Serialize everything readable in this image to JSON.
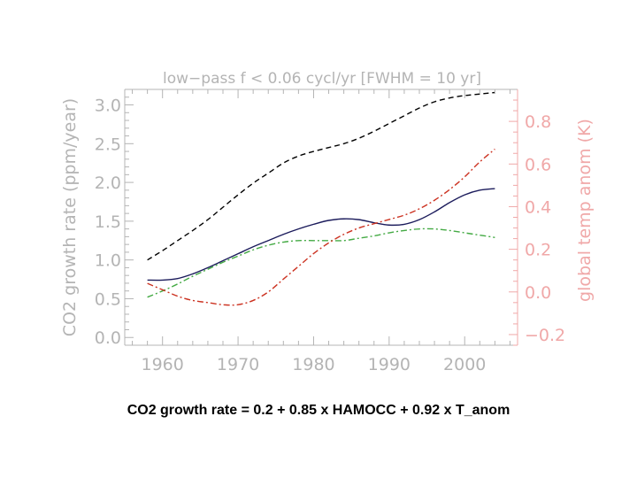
{
  "caption": "CO2 growth rate = 0.2 + 0.85 x HAMOCC + 0.92 x T_anom",
  "chart_data": {
    "type": "line",
    "title": "low−pass f < 0.06 cycl/yr  [FWHM = 10 yr]",
    "xlabel": "",
    "ylabel": "CO2 growth rate (ppm/year)",
    "y2label": "global temp anom (K)",
    "xlim": [
      1955,
      2007
    ],
    "ylim": [
      -0.1,
      3.2
    ],
    "y2lim": [
      -0.25,
      0.95
    ],
    "xticks": [
      1960,
      1970,
      1980,
      1990,
      2000
    ],
    "yticks": [
      0.0,
      0.5,
      1.0,
      1.5,
      2.0,
      2.5,
      3.0
    ],
    "yticklabels": [
      "0.0",
      "0.5",
      "1.0",
      "1.5",
      "2.0",
      "2.5",
      "3.0"
    ],
    "y2ticks": [
      -0.2,
      0.0,
      0.2,
      0.4,
      0.6,
      0.8
    ],
    "y2ticklabels": [
      "−0.2",
      "0.0",
      "0.2",
      "0.4",
      "0.6",
      "0.8"
    ],
    "grid": false,
    "colors": {
      "axis_left": "#b4b4b4",
      "axis_right": "#f0a8a8"
    },
    "series": [
      {
        "axis": "left",
        "color": "#000000",
        "dash": "dashed",
        "x": [
          1958,
          1960,
          1962,
          1964,
          1966,
          1968,
          1970,
          1972,
          1974,
          1976,
          1978,
          1980,
          1982,
          1984,
          1986,
          1988,
          1990,
          1992,
          1994,
          1996,
          1998,
          2000,
          2002,
          2004
        ],
        "y": [
          1.0,
          1.12,
          1.25,
          1.38,
          1.52,
          1.68,
          1.84,
          1.99,
          2.12,
          2.25,
          2.34,
          2.4,
          2.45,
          2.5,
          2.57,
          2.66,
          2.76,
          2.86,
          2.96,
          3.04,
          3.09,
          3.12,
          3.14,
          3.16
        ]
      },
      {
        "axis": "left",
        "color": "#1c1c5c",
        "dash": "solid",
        "x": [
          1958,
          1960,
          1962,
          1964,
          1966,
          1968,
          1970,
          1972,
          1974,
          1976,
          1978,
          1980,
          1982,
          1984,
          1986,
          1988,
          1990,
          1992,
          1994,
          1996,
          1998,
          2000,
          2002,
          2004
        ],
        "y": [
          0.74,
          0.74,
          0.76,
          0.82,
          0.9,
          0.99,
          1.08,
          1.17,
          1.25,
          1.33,
          1.4,
          1.46,
          1.51,
          1.53,
          1.52,
          1.48,
          1.45,
          1.46,
          1.52,
          1.62,
          1.74,
          1.84,
          1.9,
          1.92
        ]
      },
      {
        "axis": "left",
        "color": "#44aa44",
        "dash": "dash-dot",
        "x": [
          1958,
          1960,
          1962,
          1964,
          1966,
          1968,
          1970,
          1972,
          1974,
          1976,
          1978,
          1980,
          1982,
          1984,
          1986,
          1988,
          1990,
          1992,
          1994,
          1996,
          1998,
          2000,
          2002,
          2004
        ],
        "y": [
          0.52,
          0.6,
          0.69,
          0.79,
          0.88,
          0.97,
          1.05,
          1.13,
          1.19,
          1.23,
          1.25,
          1.25,
          1.25,
          1.25,
          1.28,
          1.31,
          1.35,
          1.38,
          1.4,
          1.4,
          1.38,
          1.35,
          1.32,
          1.29
        ]
      },
      {
        "axis": "right",
        "color": "#cc3322",
        "dash": "dash-dot",
        "x": [
          1958,
          1960,
          1962,
          1964,
          1966,
          1968,
          1970,
          1972,
          1974,
          1976,
          1978,
          1980,
          1982,
          1984,
          1986,
          1988,
          1990,
          1992,
          1994,
          1996,
          1998,
          2000,
          2002,
          2004
        ],
        "y": [
          0.04,
          0.01,
          -0.02,
          -0.04,
          -0.05,
          -0.06,
          -0.06,
          -0.04,
          0.0,
          0.06,
          0.12,
          0.18,
          0.23,
          0.27,
          0.3,
          0.32,
          0.34,
          0.36,
          0.39,
          0.43,
          0.48,
          0.54,
          0.61,
          0.67
        ]
      }
    ]
  }
}
